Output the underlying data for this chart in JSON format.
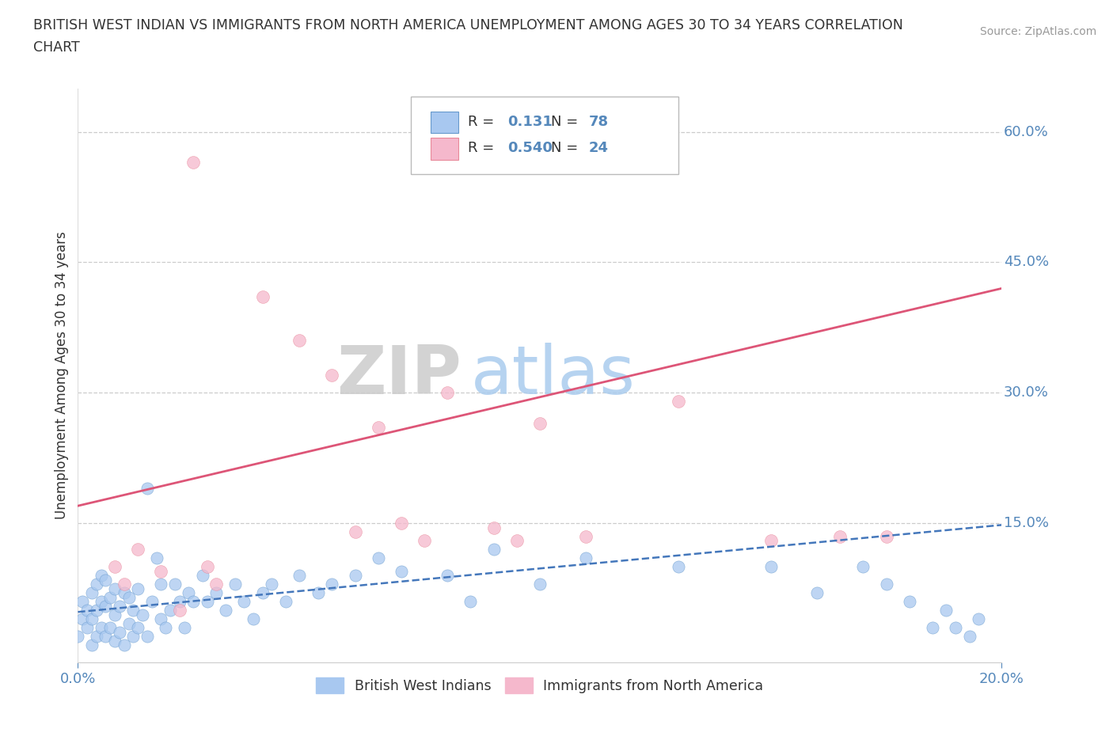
{
  "title_line1": "BRITISH WEST INDIAN VS IMMIGRANTS FROM NORTH AMERICA UNEMPLOYMENT AMONG AGES 30 TO 34 YEARS CORRELATION",
  "title_line2": "CHART",
  "source": "Source: ZipAtlas.com",
  "ylabel": "Unemployment Among Ages 30 to 34 years",
  "watermark_zip": "ZIP",
  "watermark_atlas": "atlas",
  "blue_color": "#A8C8F0",
  "blue_edge_color": "#6699CC",
  "pink_color": "#F5B8CC",
  "pink_edge_color": "#E88899",
  "blue_line_color": "#4477BB",
  "pink_line_color": "#DD5577",
  "text_color": "#333333",
  "axis_color": "#5588BB",
  "grid_color": "#CCCCCC",
  "xmin": 0.0,
  "xmax": 0.2,
  "ymin": -0.01,
  "ymax": 0.65,
  "yticks": [
    0.15,
    0.3,
    0.45,
    0.6
  ],
  "ytick_labels": [
    "15.0%",
    "30.0%",
    "45.0%",
    "60.0%"
  ],
  "xtick_labels_left": "0.0%",
  "xtick_labels_right": "20.0%",
  "legend_r1_val": "0.131",
  "legend_n1_val": "78",
  "legend_r2_val": "0.540",
  "legend_n2_val": "24",
  "blue_x": [
    0.0,
    0.001,
    0.001,
    0.002,
    0.002,
    0.003,
    0.003,
    0.003,
    0.004,
    0.004,
    0.004,
    0.005,
    0.005,
    0.005,
    0.006,
    0.006,
    0.006,
    0.007,
    0.007,
    0.008,
    0.008,
    0.008,
    0.009,
    0.009,
    0.01,
    0.01,
    0.011,
    0.011,
    0.012,
    0.012,
    0.013,
    0.013,
    0.014,
    0.015,
    0.015,
    0.016,
    0.017,
    0.018,
    0.018,
    0.019,
    0.02,
    0.021,
    0.022,
    0.023,
    0.024,
    0.025,
    0.027,
    0.028,
    0.03,
    0.032,
    0.034,
    0.036,
    0.038,
    0.04,
    0.042,
    0.045,
    0.048,
    0.052,
    0.055,
    0.06,
    0.065,
    0.07,
    0.08,
    0.085,
    0.09,
    0.1,
    0.11,
    0.13,
    0.15,
    0.16,
    0.17,
    0.175,
    0.18,
    0.185,
    0.188,
    0.19,
    0.193,
    0.195
  ],
  "blue_y": [
    0.02,
    0.04,
    0.06,
    0.03,
    0.05,
    0.01,
    0.04,
    0.07,
    0.02,
    0.05,
    0.08,
    0.03,
    0.06,
    0.09,
    0.02,
    0.055,
    0.085,
    0.03,
    0.065,
    0.015,
    0.045,
    0.075,
    0.025,
    0.055,
    0.01,
    0.07,
    0.035,
    0.065,
    0.02,
    0.05,
    0.03,
    0.075,
    0.045,
    0.02,
    0.19,
    0.06,
    0.11,
    0.04,
    0.08,
    0.03,
    0.05,
    0.08,
    0.06,
    0.03,
    0.07,
    0.06,
    0.09,
    0.06,
    0.07,
    0.05,
    0.08,
    0.06,
    0.04,
    0.07,
    0.08,
    0.06,
    0.09,
    0.07,
    0.08,
    0.09,
    0.11,
    0.095,
    0.09,
    0.06,
    0.12,
    0.08,
    0.11,
    0.1,
    0.1,
    0.07,
    0.1,
    0.08,
    0.06,
    0.03,
    0.05,
    0.03,
    0.02,
    0.04
  ],
  "pink_x": [
    0.008,
    0.01,
    0.013,
    0.018,
    0.022,
    0.025,
    0.028,
    0.03,
    0.04,
    0.048,
    0.055,
    0.06,
    0.065,
    0.07,
    0.075,
    0.08,
    0.09,
    0.095,
    0.1,
    0.11,
    0.13,
    0.15,
    0.165,
    0.175
  ],
  "pink_y": [
    0.1,
    0.08,
    0.12,
    0.095,
    0.05,
    0.565,
    0.1,
    0.08,
    0.41,
    0.36,
    0.32,
    0.14,
    0.26,
    0.15,
    0.13,
    0.3,
    0.145,
    0.13,
    0.265,
    0.135,
    0.29,
    0.13,
    0.135,
    0.135
  ],
  "pink_trend_x0": 0.0,
  "pink_trend_y0": 0.17,
  "pink_trend_x1": 0.2,
  "pink_trend_y1": 0.42,
  "blue_trend_x0": 0.0,
  "blue_trend_y0": 0.048,
  "blue_trend_x1": 0.2,
  "blue_trend_y1": 0.148
}
